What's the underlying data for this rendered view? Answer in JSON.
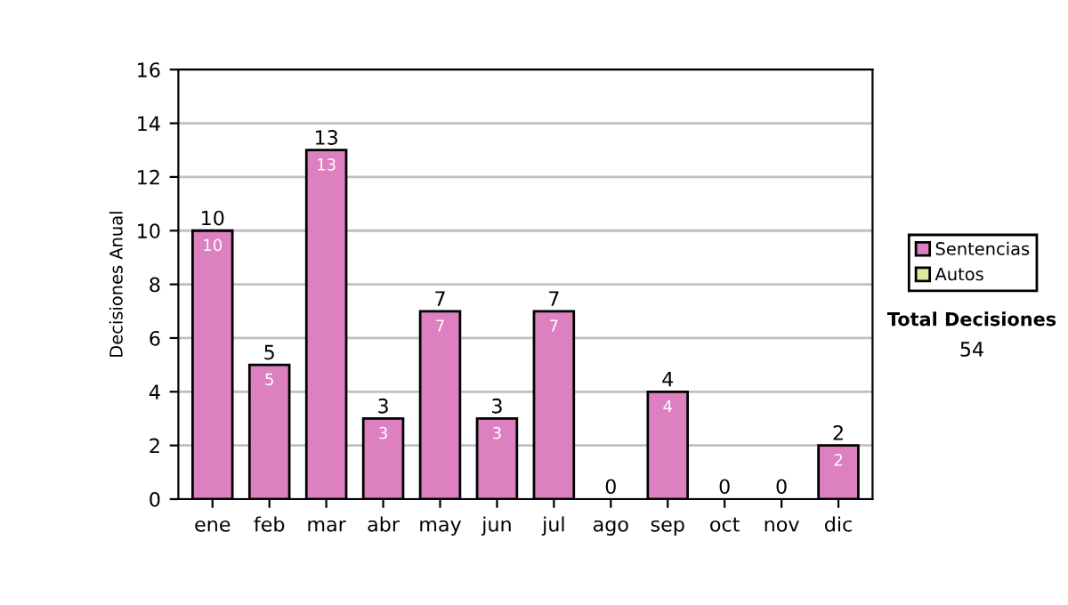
{
  "chart_data": {
    "type": "bar",
    "stacked": true,
    "ylabel": "Decisiones Anual",
    "categories": [
      "ene",
      "feb",
      "mar",
      "abr",
      "may",
      "jun",
      "jul",
      "ago",
      "sep",
      "oct",
      "nov",
      "dic"
    ],
    "series": [
      {
        "name": "Sentencias",
        "color": "#dd80c0",
        "values": [
          10,
          5,
          13,
          3,
          7,
          3,
          7,
          0,
          4,
          0,
          0,
          2
        ],
        "value_labels": [
          "10",
          "5",
          "13",
          "3",
          "7",
          "3",
          "7",
          null,
          "4",
          null,
          null,
          "2"
        ]
      },
      {
        "name": "Autos",
        "color": "#d8eaa0",
        "values": [
          0,
          0,
          0,
          0,
          0,
          0,
          0,
          0,
          0,
          0,
          0,
          0
        ]
      }
    ],
    "totals": [
      "10",
      "5",
      "13",
      "3",
      "7",
      "3",
      "7",
      "0",
      "4",
      "0",
      "0",
      "2"
    ],
    "ylim": [
      0,
      16
    ],
    "yticks": [
      0,
      2,
      4,
      6,
      8,
      10,
      12,
      14,
      16
    ],
    "grid": "y",
    "legend": "right",
    "annotations": [
      "Total Decisiones",
      "54"
    ]
  }
}
